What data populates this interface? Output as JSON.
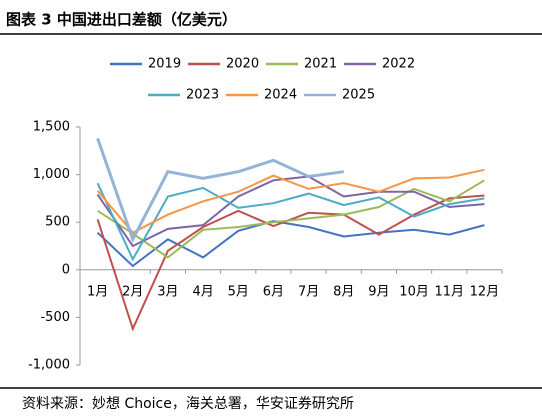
{
  "chart_data": {
    "type": "line",
    "title": "图表 3 中国进出口差额（亿美元）",
    "source": "资料来源：妙想 Choice，海关总署，华安证券研究所",
    "categories": [
      "1月",
      "2月",
      "3月",
      "4月",
      "5月",
      "6月",
      "7月",
      "8月",
      "9月",
      "10月",
      "11月",
      "12月"
    ],
    "series": [
      {
        "name": "2019",
        "color": "#4472c4",
        "values": [
          390,
          40,
          320,
          130,
          410,
          510,
          450,
          350,
          390,
          420,
          370,
          470
        ]
      },
      {
        "name": "2020",
        "color": "#c0504d",
        "values": [
          530,
          -620,
          200,
          450,
          620,
          460,
          600,
          580,
          370,
          580,
          750,
          780
        ]
      },
      {
        "name": "2021",
        "color": "#9bbb59",
        "values": [
          620,
          380,
          130,
          420,
          450,
          500,
          540,
          580,
          660,
          850,
          720,
          940
        ]
      },
      {
        "name": "2022",
        "color": "#8064a2",
        "values": [
          790,
          250,
          430,
          470,
          770,
          940,
          980,
          770,
          820,
          820,
          660,
          690
        ]
      },
      {
        "name": "2023",
        "color": "#4bacc6",
        "values": [
          910,
          110,
          770,
          860,
          650,
          700,
          800,
          680,
          760,
          560,
          690,
          750
        ]
      },
      {
        "name": "2024",
        "color": "#f79646",
        "values": [
          830,
          390,
          580,
          720,
          820,
          990,
          850,
          910,
          820,
          960,
          970,
          1050
        ]
      },
      {
        "name": "2025",
        "color": "#95b3d7",
        "values": [
          1380,
          320,
          1030,
          960,
          1030,
          1150,
          980,
          1030,
          null,
          null,
          null,
          null
        ]
      }
    ],
    "ylim": [
      -1000,
      1500
    ],
    "yticks": [
      {
        "value": 1500,
        "label": "1,500"
      },
      {
        "value": 1000,
        "label": "1,000"
      },
      500,
      0,
      -500,
      {
        "value": -1000,
        "label": "-1,000"
      }
    ],
    "grid": false
  }
}
